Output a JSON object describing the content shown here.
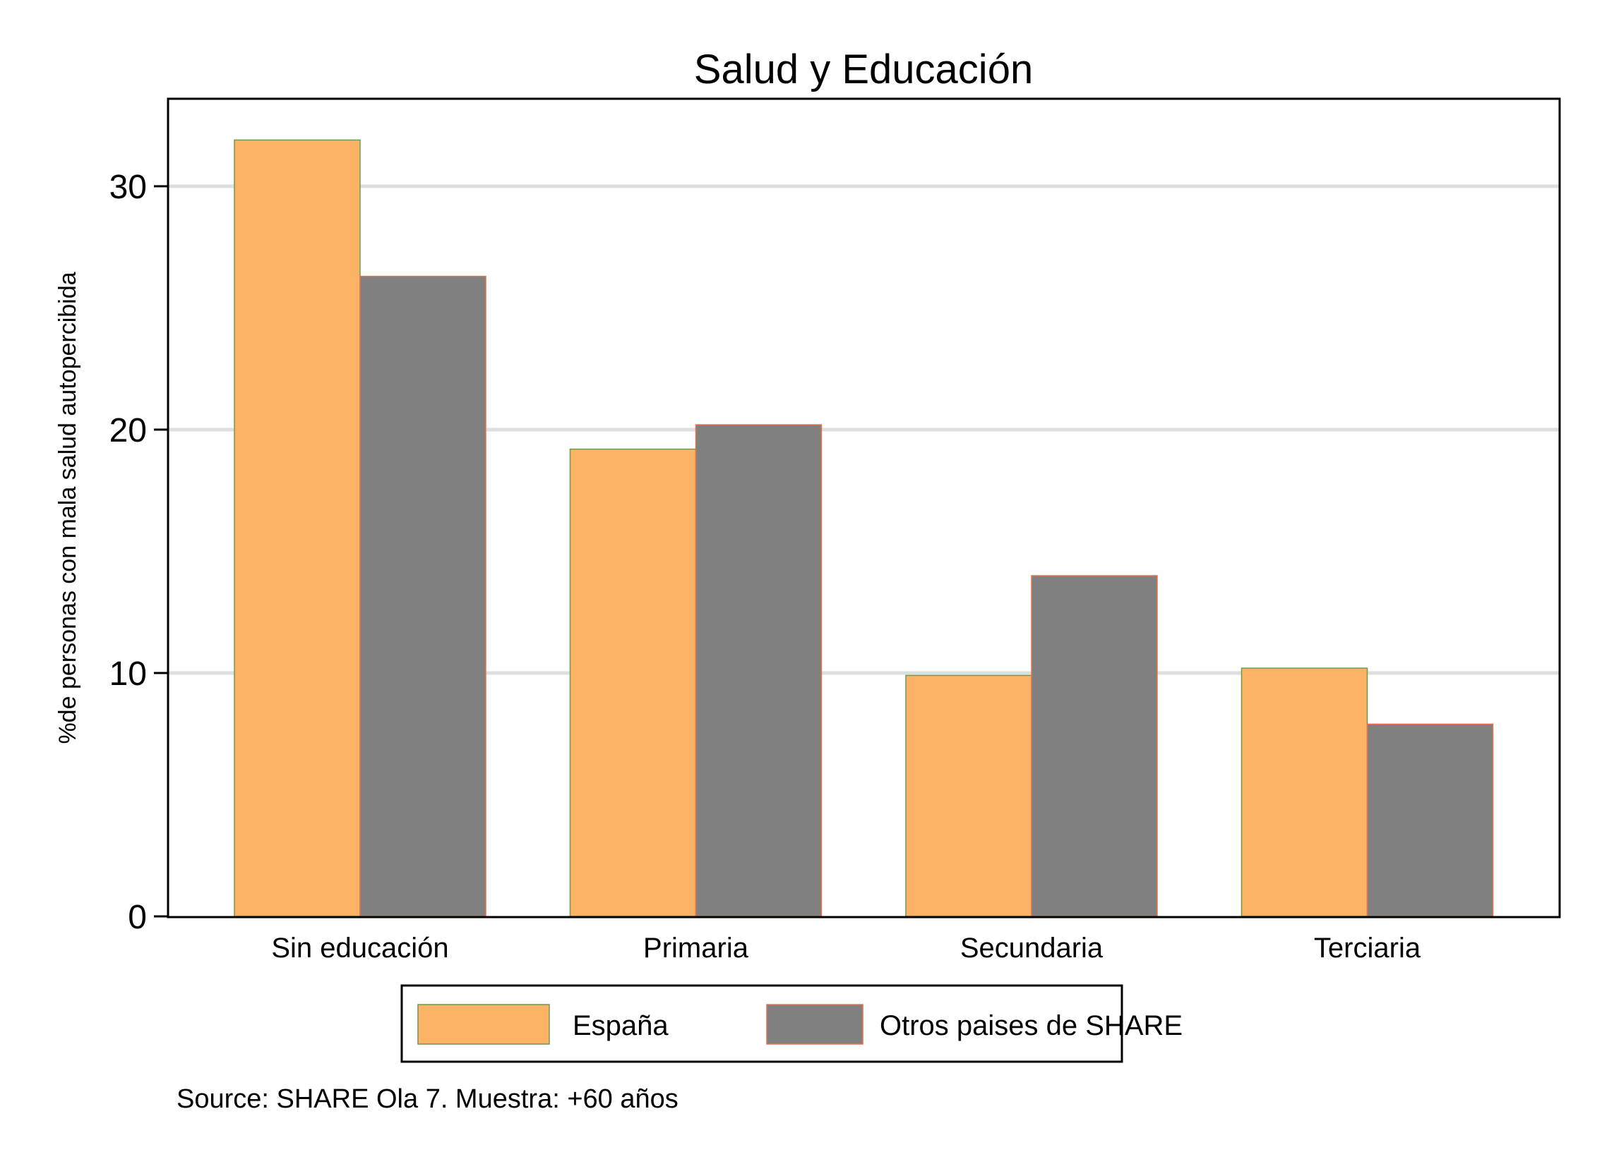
{
  "chart_data": {
    "type": "bar",
    "title": "Salud y Educación",
    "xlabel": "",
    "ylabel": "%de personas con mala salud autopercibida",
    "categories": [
      "Sin educación",
      "Primaria",
      "Secundaria",
      "Terciaria"
    ],
    "series": [
      {
        "name": "España",
        "values": [
          31.9,
          19.2,
          9.9,
          10.2
        ],
        "fill": "#FDB366",
        "stroke": "#6E9A4E"
      },
      {
        "name": "Otros paises de SHARE",
        "values": [
          26.3,
          20.2,
          14.0,
          7.9
        ],
        "fill": "#808080",
        "stroke": "#E8704A"
      }
    ],
    "ylim": [
      0,
      33.5
    ],
    "yticks": [
      0,
      10,
      20,
      30
    ],
    "ytick_labels": [
      "0",
      "10",
      "20",
      "30"
    ],
    "grid": true,
    "gridline_color": "#DEDEDE",
    "legend_position": "bottom",
    "note": "Source: SHARE Ola 7. Muestra: +60 años"
  }
}
